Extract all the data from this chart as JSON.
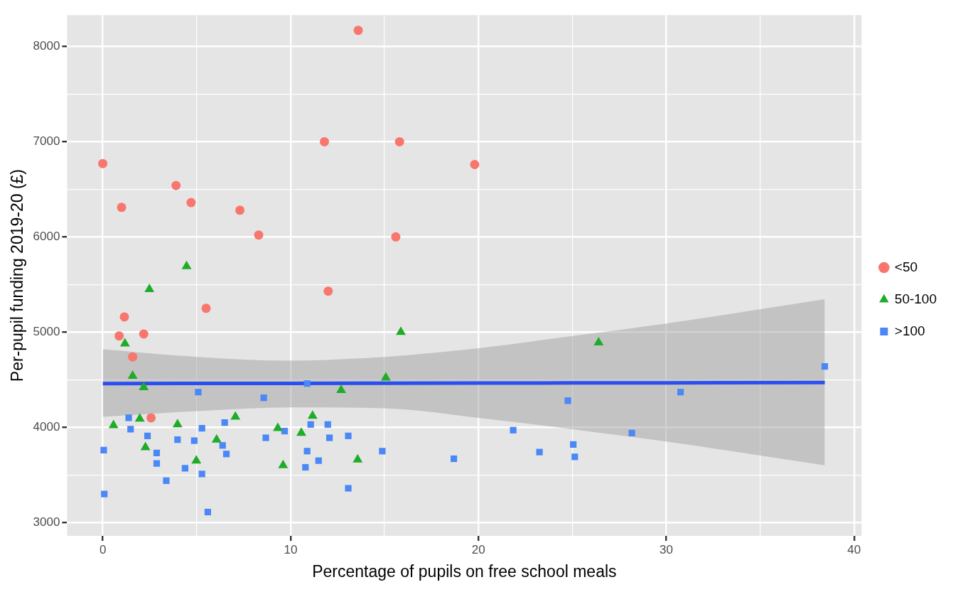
{
  "chart_data": {
    "type": "scatter",
    "xlabel": "Percentage of pupils on free school meals",
    "ylabel": "Per-pupil funding 2019-20 (£)",
    "xlim": [
      -1.9,
      40.4
    ],
    "ylim": [
      2860,
      8330
    ],
    "xticks": [
      0,
      {
        "value": 5,
        "label": null
      },
      10,
      {
        "value": 15,
        "label": null
      },
      20,
      {
        "value": 25,
        "label": null
      },
      30,
      {
        "value": 35,
        "label": null
      },
      40
    ],
    "yticks": [
      3000,
      {
        "value": 3500,
        "label": null
      },
      4000,
      {
        "value": 4500,
        "label": null
      },
      5000,
      {
        "value": 5500,
        "label": null
      },
      6000,
      {
        "value": 6500,
        "label": null
      },
      7000,
      {
        "value": 7500,
        "label": null
      },
      8000
    ],
    "grid": true,
    "legend": "right",
    "series": [
      {
        "name": "<50",
        "color": "#f8766d",
        "marker": "circle",
        "x": [
          0,
          1.0,
          3.9,
          4.7,
          7.3,
          8.3,
          11.8,
          13.6,
          15.8,
          15.6,
          19.8,
          12.0,
          5.5,
          1.15,
          0.87,
          2.18,
          1.59,
          2.57
        ],
        "values": [
          6770,
          6310,
          6540,
          6360,
          6280,
          6020,
          7000,
          8170,
          7000,
          6000,
          6760,
          5430,
          5250,
          5160,
          4960,
          4980,
          4740,
          4100
        ]
      },
      {
        "name": "50-100",
        "color": "#1fac28",
        "marker": "triangle",
        "x": [
          4.46,
          2.48,
          1.18,
          1.59,
          2.18,
          0.57,
          1.97,
          2.27,
          3.98,
          4.98,
          6.06,
          7.06,
          9.32,
          9.6,
          10.57,
          11.17,
          15.87,
          15.07,
          12.69,
          13.57,
          26.4
        ],
        "values": [
          5690,
          5450,
          4880,
          4540,
          4420,
          4020,
          4090,
          3790,
          4030,
          3650,
          3870,
          4110,
          3990,
          3600,
          3940,
          4120,
          5000,
          4520,
          4390,
          3660,
          4890
        ]
      },
      {
        "name": ">100",
        "color": "#4b88f7",
        "marker": "square",
        "x": [
          0.05,
          0.08,
          1.38,
          1.48,
          2.38,
          2.87,
          2.87,
          3.38,
          3.98,
          4.38,
          4.87,
          5.08,
          5.28,
          5.28,
          5.59,
          6.49,
          6.38,
          6.58,
          8.57,
          8.68,
          9.68,
          10.88,
          11.07,
          10.88,
          10.79,
          11.98,
          12.07,
          13.07,
          11.49,
          13.07,
          14.88,
          18.69,
          21.85,
          23.25,
          24.76,
          25.05,
          25.13,
          28.17,
          30.76,
          38.44
        ],
        "values": [
          3760,
          3300,
          4100,
          3980,
          3910,
          3730,
          3620,
          3440,
          3870,
          3570,
          3860,
          4370,
          3990,
          3510,
          3110,
          4050,
          3810,
          3720,
          4310,
          3890,
          3960,
          4460,
          4030,
          3750,
          3580,
          4030,
          3890,
          3910,
          3650,
          3360,
          3750,
          3670,
          3970,
          3740,
          4280,
          3820,
          3690,
          3940,
          4370,
          4640
        ]
      },
      {
        "type": "line",
        "color": "#2b4ef0",
        "marker": "none",
        "x": [
          0,
          5,
          10,
          15,
          20,
          25,
          30,
          38.44
        ],
        "values": [
          4460,
          4461,
          4462,
          4463,
          4464,
          4466,
          4467,
          4470
        ],
        "lower": [
          4110,
          4170,
          4210,
          4200,
          4100,
          3980,
          3850,
          3600
        ],
        "upper": [
          4820,
          4740,
          4700,
          4740,
          4830,
          4960,
          5090,
          5345
        ]
      }
    ]
  }
}
